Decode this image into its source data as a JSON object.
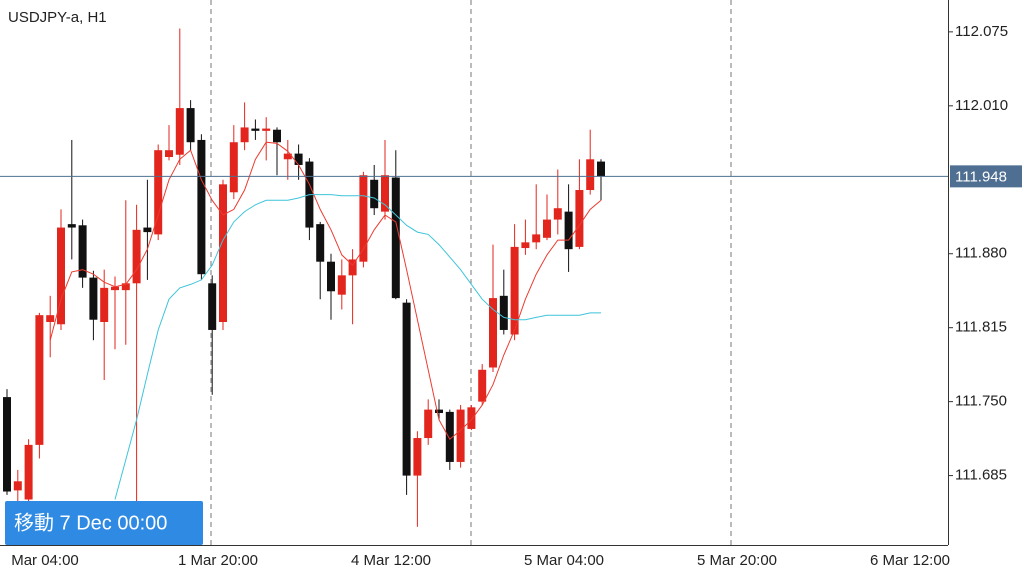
{
  "chart_data": {
    "type": "candlestick",
    "title": "USDJPY-a, H1",
    "open": [
      111.754,
      111.672,
      111.664,
      111.712,
      111.82,
      111.818,
      111.906,
      111.905,
      111.859,
      111.82,
      111.848,
      111.848,
      111.854,
      111.903,
      111.897,
      111.965,
      111.967,
      112.008,
      111.98,
      111.854,
      111.82,
      111.934,
      111.978,
      111.99,
      111.988,
      111.989,
      111.963,
      111.968,
      111.961,
      111.906,
      111.873,
      111.844,
      111.861,
      111.873,
      111.945,
      111.917,
      111.947,
      111.837,
      111.685,
      111.718,
      111.743,
      111.741,
      111.697,
      111.726,
      111.75,
      111.78,
      111.843,
      111.809,
      111.885,
      111.89,
      111.894,
      111.91,
      111.917,
      111.886,
      111.936,
      111.961
    ],
    "high": [
      111.761,
      111.69,
      111.717,
      111.828,
      111.843,
      111.919,
      111.98,
      111.91,
      111.865,
      111.866,
      111.86,
      111.927,
      111.923,
      111.945,
      111.976,
      111.993,
      112.078,
      112.015,
      111.985,
      111.861,
      111.945,
      111.993,
      112.013,
      111.998,
      112.0,
      111.991,
      111.98,
      111.976,
      111.964,
      111.908,
      111.88,
      111.875,
      111.884,
      111.952,
      111.958,
      111.98,
      111.971,
      111.84,
      111.724,
      111.752,
      111.752,
      111.743,
      111.747,
      111.747,
      111.783,
      111.888,
      111.866,
      111.906,
      111.91,
      111.941,
      111.932,
      111.954,
      111.941,
      111.963,
      111.989,
      111.963
    ],
    "low": [
      111.668,
      111.66,
      111.66,
      111.7,
      111.789,
      111.813,
      111.875,
      111.85,
      111.804,
      111.769,
      111.796,
      111.8,
      111.646,
      111.857,
      111.892,
      111.962,
      111.958,
      111.971,
      111.857,
      111.756,
      111.813,
      111.928,
      111.971,
      111.98,
      111.962,
      111.949,
      111.945,
      111.945,
      111.892,
      111.84,
      111.822,
      111.831,
      111.818,
      111.868,
      111.914,
      111.91,
      111.84,
      111.668,
      111.64,
      111.712,
      111.734,
      111.69,
      111.692,
      111.725,
      111.747,
      111.776,
      111.809,
      111.804,
      111.879,
      111.884,
      111.892,
      111.897,
      111.864,
      111.884,
      111.932,
      111.927
    ],
    "close": [
      111.671,
      111.68,
      111.712,
      111.826,
      111.826,
      111.903,
      111.903,
      111.859,
      111.822,
      111.85,
      111.851,
      111.854,
      111.901,
      111.899,
      111.971,
      111.971,
      112.008,
      111.978,
      111.862,
      111.813,
      111.941,
      111.978,
      111.991,
      111.988,
      111.99,
      111.978,
      111.968,
      111.958,
      111.903,
      111.873,
      111.847,
      111.861,
      111.875,
      111.949,
      111.92,
      111.949,
      111.841,
      111.685,
      111.718,
      111.743,
      111.74,
      111.697,
      111.743,
      111.745,
      111.778,
      111.841,
      111.813,
      111.886,
      111.89,
      111.897,
      111.91,
      111.92,
      111.884,
      111.936,
      111.963,
      111.948
    ],
    "colors": {
      "up": "#e3261d",
      "down": "#111111"
    },
    "moving_averages": [
      {
        "color": "#ec3a30",
        "values": [
          null,
          null,
          null,
          null,
          111.804,
          111.84,
          111.864,
          111.866,
          111.862,
          111.855,
          111.851,
          111.853,
          111.866,
          111.884,
          111.914,
          111.945,
          111.963,
          111.971,
          111.945,
          111.927,
          111.914,
          111.919,
          111.936,
          111.963,
          111.978,
          111.977,
          111.97,
          111.958,
          111.941,
          111.919,
          111.901,
          111.879,
          111.87,
          111.884,
          111.901,
          111.914,
          111.908,
          111.866,
          111.822,
          111.778,
          111.734,
          111.717,
          111.725,
          111.734,
          111.747,
          111.765,
          111.791,
          111.813,
          111.84,
          111.862,
          111.879,
          111.892,
          111.892,
          111.905,
          111.919,
          111.927
        ]
      },
      {
        "color": "#3fc4d9",
        "values": [
          null,
          null,
          null,
          null,
          null,
          null,
          null,
          null,
          null,
          null,
          111.664,
          111.699,
          111.734,
          111.774,
          111.813,
          111.84,
          111.85,
          111.853,
          111.857,
          111.87,
          111.892,
          111.908,
          111.917,
          111.923,
          111.927,
          111.927,
          111.927,
          111.929,
          111.932,
          111.932,
          111.932,
          111.931,
          111.931,
          111.931,
          111.929,
          111.923,
          111.914,
          111.905,
          111.899,
          111.897,
          111.888,
          111.877,
          111.866,
          111.853,
          111.84,
          111.831,
          111.824,
          111.822,
          111.822,
          111.824,
          111.826,
          111.826,
          111.826,
          111.826,
          111.828,
          111.828
        ]
      }
    ],
    "ylim": [
      111.624,
      112.103
    ],
    "yticks": [
      112.075,
      {
        "value": 112.01,
        "label": "112.010"
      },
      {
        "value": 111.88,
        "label": "111.880"
      },
      111.815,
      {
        "value": 111.75,
        "label": "111.750"
      },
      111.685
    ],
    "xtick_labels": [
      "Mar 04:00",
      "1 Mar 20:00",
      "4 Mar 12:00",
      "5 Mar 04:00",
      "5 Mar 20:00",
      "6 Mar 12:00"
    ],
    "current_price": 111.948,
    "price_line_color": "#4e6f91"
  },
  "navigation": {
    "label": "移動 7 Dec 00:00"
  }
}
